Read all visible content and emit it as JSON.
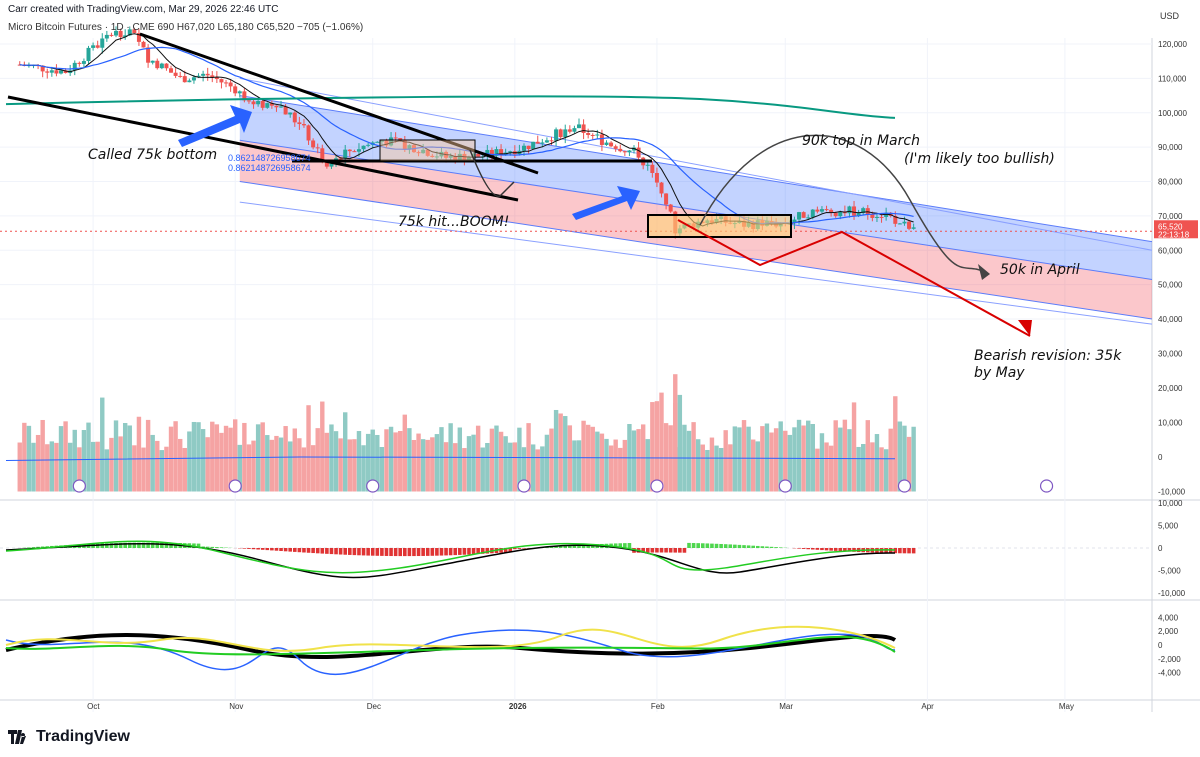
{
  "header": {
    "created_line": "Carr created with TradingView.com, Mar 29, 2026 22:46 UTC",
    "symbol_line": "Micro Bitcoin Futures · 1D · CME  690  H67,020  L65,180  C65,520  −705 (−1.06%)",
    "fib_1": "0.862148726958674",
    "fib_2": "0.862148726958674"
  },
  "price_axis": {
    "currency": "USD",
    "ticks": [
      "120,000",
      "110,000",
      "100,000",
      "90,000",
      "80,000",
      "70,000",
      "60,000",
      "50,000",
      "40,000"
    ],
    "last_price": "65,520",
    "countdown": "22:13:18"
  },
  "volume_axis": {
    "ticks": [
      "30,000",
      "20,000",
      "10,000",
      "0",
      "-10,000"
    ]
  },
  "macd_axis": {
    "ticks": [
      "10,000",
      "5,000",
      "0",
      "-5,000",
      "-10,000"
    ]
  },
  "osc_axis": {
    "ticks": [
      "4,000",
      "2,000",
      "0",
      "-2,000",
      "-4,000"
    ]
  },
  "time_axis": {
    "labels": [
      "Oct",
      "Nov",
      "Dec",
      "2026",
      "Feb",
      "Mar",
      "Apr",
      "May"
    ]
  },
  "annotations": {
    "called_bottom": "Called 75k bottom",
    "boom": "75k hit...BOOM!",
    "top_march": "90k top in March",
    "too_bullish": "(I'm likely too bullish)",
    "april": "50k in April",
    "bearish_1": "Bearish revision: 35k",
    "bearish_2": "by May"
  },
  "brand": {
    "logo_text": "TradingView"
  },
  "colors": {
    "up": "#26a69a",
    "down": "#ef5350",
    "ema200": "#089981",
    "channel_blue": "#2962ff",
    "channel_red": "#f23645",
    "arrow_blue": "#2962ff",
    "arrow_red": "#d80000",
    "macd_line": "#000000",
    "signal_line": "#22cc22"
  },
  "chart_data": {
    "type": "candlestick",
    "title": "Micro Bitcoin Futures · 1D · CME",
    "last_close": 65520,
    "ylim": [
      35000,
      125000
    ],
    "x_range": [
      "2025-09-12",
      "2026-05-20"
    ],
    "series": [
      {
        "name": "price_path_approx",
        "points": [
          [
            "2025-09-15",
            114000
          ],
          [
            "2025-09-25",
            112000
          ],
          [
            "2025-10-05",
            123000
          ],
          [
            "2025-10-09",
            124000
          ],
          [
            "2025-10-13",
            116000
          ],
          [
            "2025-10-20",
            110000
          ],
          [
            "2025-10-26",
            111000
          ],
          [
            "2025-11-01",
            107000
          ],
          [
            "2025-11-05",
            102000
          ],
          [
            "2025-11-10",
            103000
          ],
          [
            "2025-11-16",
            95000
          ],
          [
            "2025-11-21",
            84000
          ],
          [
            "2025-11-26",
            89000
          ],
          [
            "2025-12-03",
            92000
          ],
          [
            "2025-12-10",
            90000
          ],
          [
            "2025-12-17",
            87000
          ],
          [
            "2025-12-25",
            87500
          ],
          [
            "2026-01-03",
            90000
          ],
          [
            "2026-01-14",
            96000
          ],
          [
            "2026-01-20",
            92000
          ],
          [
            "2026-01-28",
            88000
          ],
          [
            "2026-02-02",
            78000
          ],
          [
            "2026-02-05",
            66000
          ],
          [
            "2026-02-12",
            69000
          ],
          [
            "2026-02-20",
            67500
          ],
          [
            "2026-03-01",
            68000
          ],
          [
            "2026-03-06",
            71000
          ],
          [
            "2026-03-15",
            71500
          ],
          [
            "2026-03-23",
            70500
          ],
          [
            "2026-03-29",
            65520
          ]
        ]
      },
      {
        "name": "projection_bearish",
        "points": [
          [
            "2026-02-10",
            68000
          ],
          [
            "2026-02-26",
            56000
          ],
          [
            "2026-03-18",
            67000
          ],
          [
            "2026-04-30",
            35000
          ]
        ]
      },
      {
        "name": "projection_bullish_then_april",
        "points": [
          [
            "2026-02-16",
            67000
          ],
          [
            "2026-03-15",
            90000
          ],
          [
            "2026-04-18",
            52000
          ]
        ]
      }
    ]
  }
}
